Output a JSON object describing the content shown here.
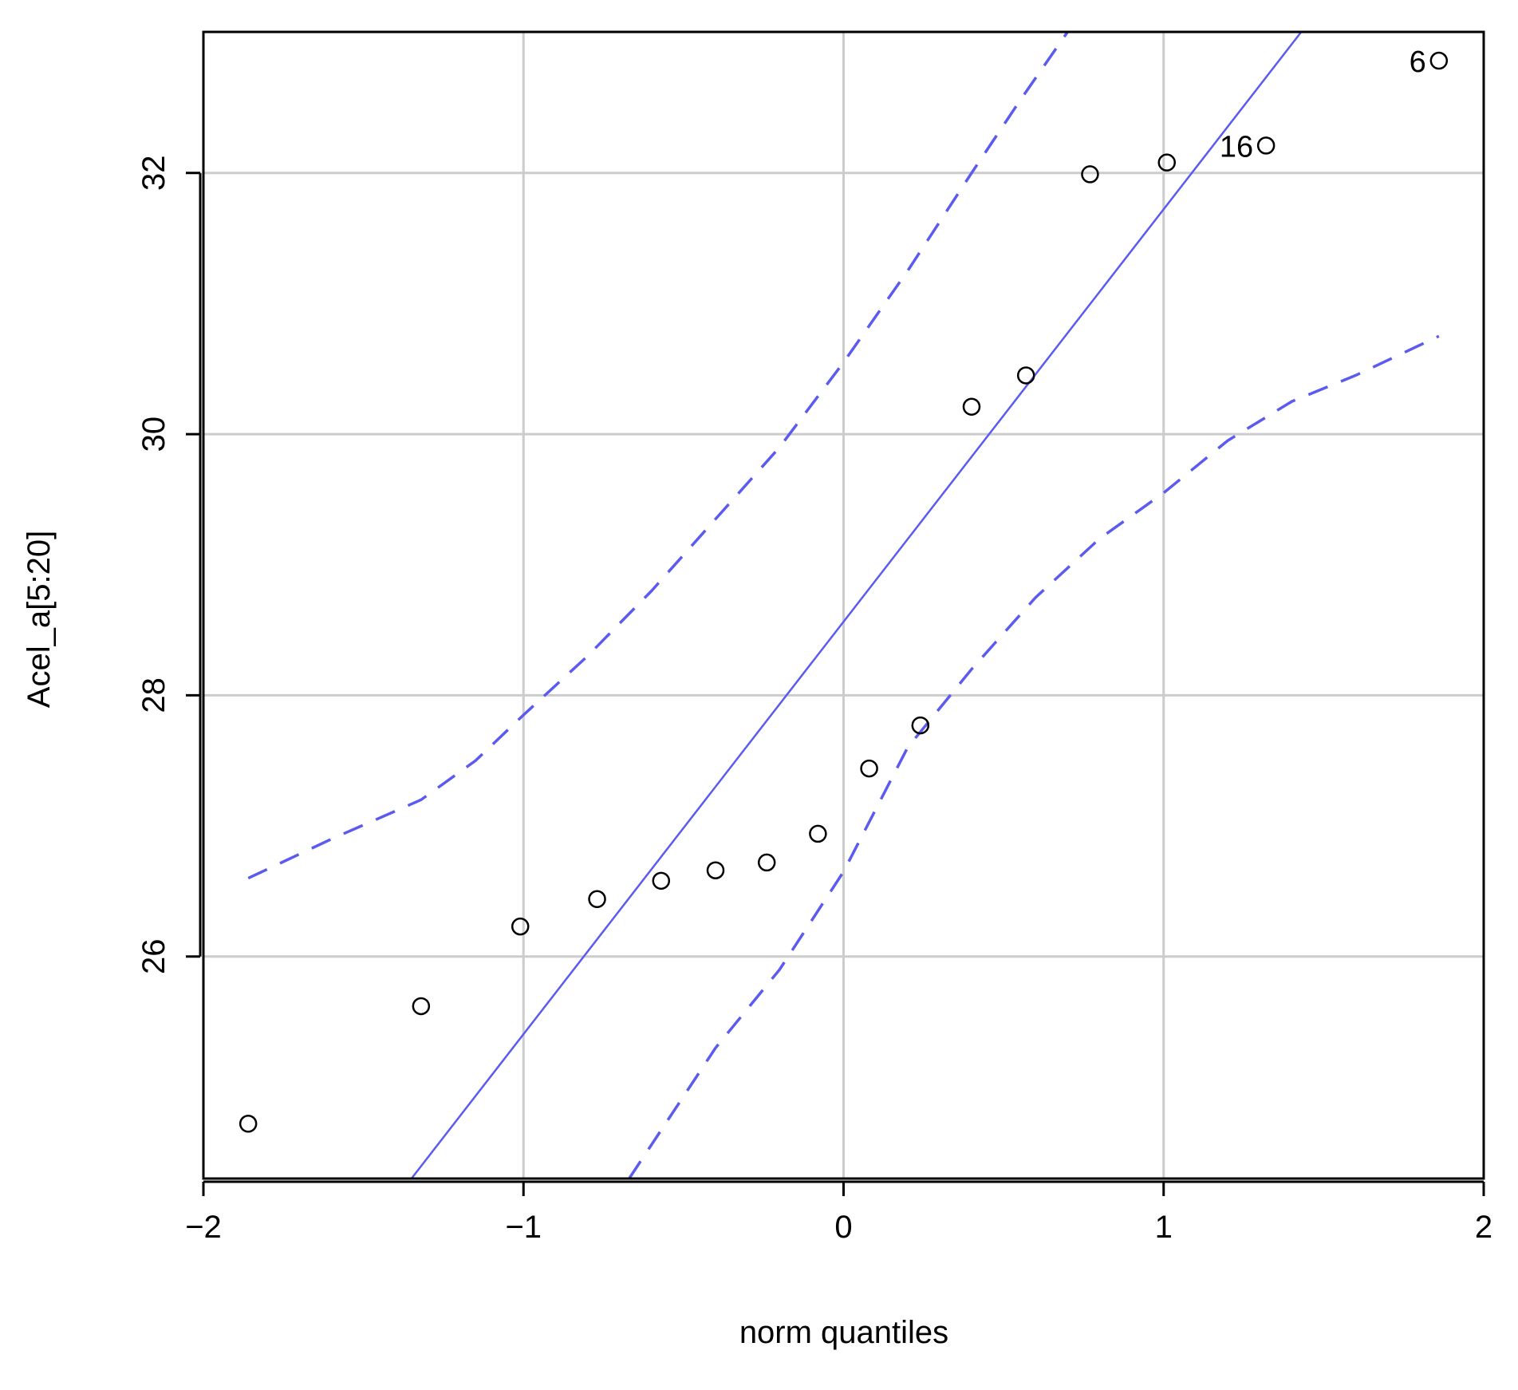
{
  "chart_data": {
    "type": "scatter",
    "title": "",
    "xlabel": "norm quantiles",
    "ylabel": "Acel_a[5:20]",
    "xlim": [
      -2,
      2
    ],
    "ylim": [
      24.3,
      33.08
    ],
    "grid": true,
    "x_ticks": [
      {
        "value": -2,
        "label": "−2"
      },
      {
        "value": -1,
        "label": "−1"
      },
      {
        "value": 0,
        "label": "0"
      },
      {
        "value": 1,
        "label": "1"
      },
      {
        "value": 2,
        "label": "2"
      }
    ],
    "y_ticks": [
      {
        "value": 26,
        "label": "26"
      },
      {
        "value": 28,
        "label": "28"
      },
      {
        "value": 30,
        "label": "30"
      },
      {
        "value": 32,
        "label": "32"
      }
    ],
    "points": [
      {
        "x": -1.86,
        "y": 24.72
      },
      {
        "x": -1.32,
        "y": 25.62
      },
      {
        "x": -1.01,
        "y": 26.23
      },
      {
        "x": -0.77,
        "y": 26.44
      },
      {
        "x": -0.57,
        "y": 26.58
      },
      {
        "x": -0.4,
        "y": 26.66
      },
      {
        "x": -0.24,
        "y": 26.72
      },
      {
        "x": -0.08,
        "y": 26.94
      },
      {
        "x": 0.08,
        "y": 27.44
      },
      {
        "x": 0.24,
        "y": 27.77
      },
      {
        "x": 0.4,
        "y": 30.21
      },
      {
        "x": 0.57,
        "y": 30.45
      },
      {
        "x": 0.77,
        "y": 31.99
      },
      {
        "x": 1.01,
        "y": 32.08
      },
      {
        "x": 1.32,
        "y": 32.21,
        "label": "16"
      },
      {
        "x": 1.86,
        "y": 32.86,
        "label": "6"
      }
    ],
    "reference_line": {
      "x": [
        -1.35,
        1.43
      ],
      "y": [
        24.3,
        33.08
      ]
    },
    "confidence_band_upper": {
      "x": [
        -1.86,
        -1.6,
        -1.32,
        -1.15,
        -1.0,
        -0.8,
        -0.6,
        -0.4,
        -0.2,
        0.0,
        0.2,
        0.4,
        0.55,
        0.7
      ],
      "y": [
        26.6,
        26.9,
        27.2,
        27.5,
        27.85,
        28.3,
        28.8,
        29.35,
        29.9,
        30.55,
        31.25,
        32.0,
        32.55,
        33.08
      ]
    },
    "confidence_band_lower": {
      "x": [
        -0.67,
        -0.4,
        -0.2,
        0.0,
        0.2,
        0.4,
        0.6,
        0.8,
        1.0,
        1.2,
        1.4,
        1.6,
        1.86
      ],
      "y": [
        24.3,
        25.3,
        25.9,
        26.65,
        27.6,
        28.2,
        28.75,
        29.2,
        29.55,
        29.95,
        30.25,
        30.45,
        30.75
      ]
    },
    "colors": {
      "line": "#5b5bf0",
      "points": "#000000",
      "grid": "#cccccc",
      "frame": "#000000",
      "text": "#000000"
    }
  }
}
